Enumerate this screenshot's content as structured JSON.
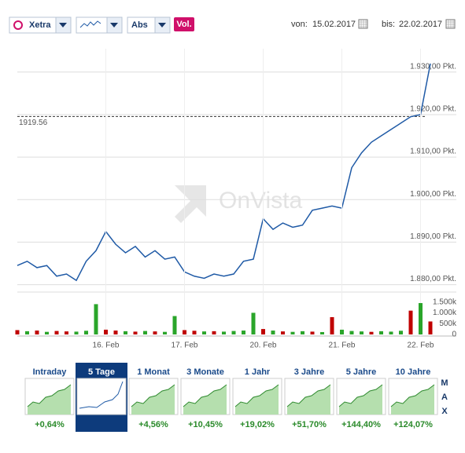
{
  "toolbar": {
    "exchange": "Xetra",
    "mode": "Abs",
    "volume": "Vol.",
    "from_label": "von:",
    "from": "15.02.2017",
    "to_label": "bis:",
    "to": "22.02.2017"
  },
  "watermark": "OnVista",
  "chart_data": [
    {
      "type": "line",
      "color": "#1f5aa6",
      "values": [
        1884.5,
        1885.5,
        1884,
        1884.5,
        1882,
        1882.5,
        1881,
        1885.5,
        1888,
        1892.5,
        1889.5,
        1887.5,
        1889,
        1886.5,
        1888,
        1886,
        1886.5,
        1883,
        1882,
        1881.5,
        1882.5,
        1882,
        1882.5,
        1885.5,
        1886,
        1895.5,
        1893,
        1894.5,
        1893.5,
        1894,
        1897.5,
        1898,
        1898.5,
        1898,
        1907.5,
        1911,
        1913.5,
        1915,
        1916.5,
        1918,
        1919.5,
        1920,
        1932
      ],
      "reference": 1919.56,
      "ylim": [
        1879,
        1935.5
      ],
      "yticks": [
        {
          "value": 1880,
          "label": "1.880,00 Pkt."
        },
        {
          "value": 1890,
          "label": "1.890,00 Pkt."
        },
        {
          "value": 1900,
          "label": "1.900,00 Pkt."
        },
        {
          "value": 1910,
          "label": "1.910,00 Pkt."
        },
        {
          "value": 1920,
          "label": "1.920,00 Pkt."
        },
        {
          "value": 1930,
          "label": "1.930,00 Pkt."
        }
      ],
      "grid": true
    },
    {
      "type": "bar",
      "categories": [
        null,
        null,
        null,
        null,
        null,
        null,
        null,
        null,
        null,
        "16. Feb",
        null,
        null,
        null,
        null,
        null,
        null,
        null,
        "17. Feb",
        null,
        null,
        null,
        null,
        null,
        null,
        null,
        "20. Feb",
        null,
        null,
        null,
        null,
        null,
        null,
        null,
        "21. Feb",
        null,
        null,
        null,
        null,
        null,
        null,
        null,
        "22. Feb",
        null
      ],
      "values": [
        200000,
        150000,
        180000,
        120000,
        160000,
        140000,
        130000,
        170000,
        1400000,
        220000,
        180000,
        150000,
        130000,
        160000,
        140000,
        120000,
        850000,
        200000,
        170000,
        140000,
        150000,
        130000,
        160000,
        180000,
        1000000,
        250000,
        180000,
        140000,
        120000,
        150000,
        130000,
        110000,
        800000,
        220000,
        160000,
        140000,
        120000,
        150000,
        130000,
        170000,
        1100000,
        1450000,
        600000
      ],
      "colors": [
        "#c00000",
        "#2aa52a",
        "#c00000",
        "#2aa52a",
        "#c00000",
        "#c00000",
        "#2aa52a",
        "#2aa52a",
        "#2aa52a",
        "#c00000",
        "#c00000",
        "#2aa52a",
        "#c00000",
        "#2aa52a",
        "#c00000",
        "#2aa52a",
        "#2aa52a",
        "#c00000",
        "#c00000",
        "#2aa52a",
        "#c00000",
        "#2aa52a",
        "#2aa52a",
        "#2aa52a",
        "#2aa52a",
        "#c00000",
        "#2aa52a",
        "#c00000",
        "#2aa52a",
        "#2aa52a",
        "#c00000",
        "#2aa52a",
        "#c00000",
        "#2aa52a",
        "#2aa52a",
        "#2aa52a",
        "#c00000",
        "#2aa52a",
        "#2aa52a",
        "#2aa52a",
        "#c00000",
        "#2aa52a",
        "#c00000"
      ],
      "ylim": [
        0,
        1850000
      ],
      "yticks": [
        0,
        {
          "value": 500000,
          "label": "500k"
        },
        {
          "value": 1000000,
          "label": "1.000k"
        },
        {
          "value": 1500000,
          "label": "1.500k"
        }
      ]
    }
  ],
  "tabs": {
    "selected": 1,
    "items": [
      {
        "label": "Intraday",
        "change": "+0,64%"
      },
      {
        "label": "5 Tage",
        "change": ""
      },
      {
        "label": "1 Monat",
        "change": "+4,56%"
      },
      {
        "label": "3 Monate",
        "change": "+10,45%"
      },
      {
        "label": "1 Jahr",
        "change": "+19,02%"
      },
      {
        "label": "3 Jahre",
        "change": "+51,70%"
      },
      {
        "label": "5 Jahre",
        "change": "+144,40%"
      },
      {
        "label": "10 Jahre",
        "change": "+124,07%"
      }
    ]
  },
  "max": [
    "M",
    "A",
    "X"
  ]
}
